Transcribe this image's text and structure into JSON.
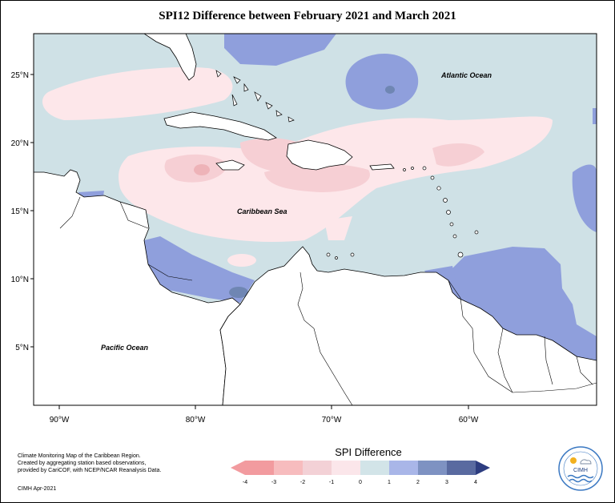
{
  "map": {
    "title": "SPI12 Difference between February 2021 and March 2021",
    "lat_ticks": [
      "25°N",
      "20°N",
      "15°N",
      "10°N",
      "5°N"
    ],
    "lon_ticks": [
      "90°W",
      "80°W",
      "70°W",
      "60°W"
    ],
    "place_labels": {
      "atlantic": "Atlantic Ocean",
      "caribbean": "Caribbean Sea",
      "pacific": "Pacific Ocean"
    },
    "colors": {
      "ocean_neutral": "#cfe1e6",
      "land": "#ffffff",
      "wet_light": "#8f9fdc",
      "wet_mid": "#6f86b3",
      "dry_light": "#fde7ea",
      "dry_mid": "#f6cfd4",
      "dry_strong": "#eeb3b8"
    }
  },
  "footer": {
    "note_lines": [
      "Climate Monitoring Map of the Caribbean Region.",
      "Created by aggregating station based observations,",
      "provided by CariCOF, with NCEP/NCAR Reanalysis Data."
    ],
    "credit": "CIMH Apr-2021"
  },
  "legend": {
    "title": "SPI Difference",
    "labels": [
      "-4",
      "-3",
      "-2",
      "-1",
      "0",
      "1",
      "2",
      "3",
      "4"
    ],
    "colors": [
      "#f29b9f",
      "#f7bcbe",
      "#f3d1d6",
      "#fbe6ea",
      "#d2e4e8",
      "#a9b6e8",
      "#7e92c2",
      "#596aa0",
      "#2d3d80"
    ]
  },
  "logo": {
    "text": "CIMH"
  }
}
